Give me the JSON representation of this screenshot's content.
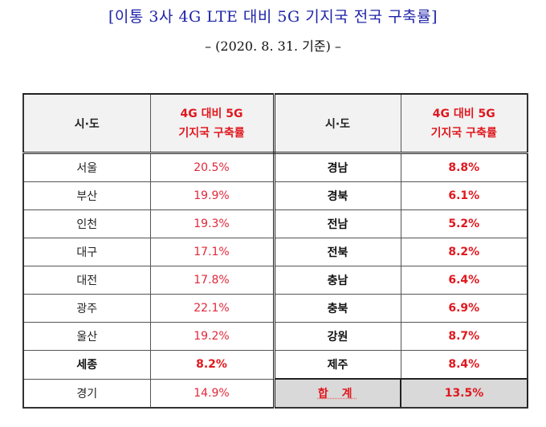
{
  "document": {
    "title": "[이통 3사 4G LTE 대비 5G 기지국 전국 구축률]",
    "subtitle": "–  (2020. 8. 31. 기준) –"
  },
  "table": {
    "headers": {
      "region": "시·도",
      "rate_line1": "4G 대비 5G",
      "rate_line2": "기지국 구축률"
    },
    "left": [
      {
        "region": "서울",
        "rate": "20.5%",
        "bold": false
      },
      {
        "region": "부산",
        "rate": "19.9%",
        "bold": false
      },
      {
        "region": "인천",
        "rate": "19.3%",
        "bold": false
      },
      {
        "region": "대구",
        "rate": "17.1%",
        "bold": false
      },
      {
        "region": "대전",
        "rate": "17.8%",
        "bold": false
      },
      {
        "region": "광주",
        "rate": "22.1%",
        "bold": false
      },
      {
        "region": "울산",
        "rate": "19.2%",
        "bold": false
      },
      {
        "region": "세종",
        "rate": "8.2%",
        "bold": true
      },
      {
        "region": "경기",
        "rate": "14.9%",
        "bold": false
      }
    ],
    "right": [
      {
        "region": "경남",
        "rate": "8.8%"
      },
      {
        "region": "경북",
        "rate": "6.1%"
      },
      {
        "region": "전남",
        "rate": "5.2%"
      },
      {
        "region": "전북",
        "rate": "8.2%"
      },
      {
        "region": "충남",
        "rate": "6.4%"
      },
      {
        "region": "충북",
        "rate": "6.9%"
      },
      {
        "region": "강원",
        "rate": "8.7%"
      },
      {
        "region": "제주",
        "rate": "8.4%"
      }
    ],
    "total": {
      "label": "합 계",
      "rate": "13.5%"
    }
  },
  "colors": {
    "title_blue": "#1f24a8",
    "rate_red": "#e0181f",
    "header_bg": "#f2f2f2",
    "total_bg": "#d9d9d9"
  }
}
